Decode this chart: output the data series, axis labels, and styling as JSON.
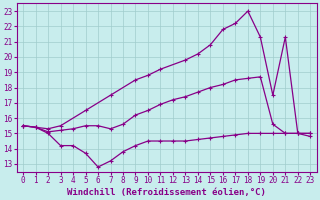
{
  "title": "",
  "xlabel": "Windchill (Refroidissement éolien,°C)",
  "xlabel_fontsize": 6.5,
  "xlim": [
    -0.5,
    23.5
  ],
  "ylim": [
    12.5,
    23.5
  ],
  "yticks": [
    13,
    14,
    15,
    16,
    17,
    18,
    19,
    20,
    21,
    22,
    23
  ],
  "xticks": [
    0,
    1,
    2,
    3,
    4,
    5,
    6,
    7,
    8,
    9,
    10,
    11,
    12,
    13,
    14,
    15,
    16,
    17,
    18,
    19,
    20,
    21,
    22,
    23
  ],
  "bg_color": "#c8eded",
  "grid_color": "#a0cccc",
  "line_color": "#880088",
  "line1_x": [
    0,
    1,
    2,
    3,
    4,
    5,
    6,
    7,
    8,
    9,
    10,
    11,
    12,
    13,
    14,
    15,
    16,
    17,
    18,
    19,
    20,
    21,
    22,
    23
  ],
  "line1_y": [
    15.5,
    15.4,
    15.1,
    15.2,
    15.3,
    15.5,
    15.5,
    15.3,
    15.6,
    16.2,
    16.5,
    16.9,
    17.2,
    17.4,
    17.7,
    18.0,
    18.2,
    18.5,
    18.6,
    18.7,
    15.6,
    15.0,
    15.0,
    15.0
  ],
  "line2_x": [
    0,
    1,
    2,
    3,
    4,
    5,
    6,
    7,
    8,
    9,
    10,
    11,
    12,
    13,
    14,
    15,
    16,
    17,
    18,
    19,
    20,
    21,
    22,
    23
  ],
  "line2_y": [
    15.5,
    15.4,
    15.0,
    14.2,
    14.2,
    13.7,
    12.8,
    13.2,
    13.8,
    14.2,
    14.5,
    14.5,
    14.5,
    14.5,
    14.6,
    14.7,
    14.8,
    14.9,
    15.0,
    15.0,
    15.0,
    15.0,
    15.0,
    15.0
  ],
  "line3_x": [
    0,
    1,
    2,
    3,
    5,
    7,
    9,
    10,
    11,
    13,
    14,
    15,
    16,
    17,
    18,
    19,
    20,
    21,
    22,
    23
  ],
  "line3_y": [
    15.5,
    15.4,
    15.3,
    15.5,
    16.5,
    17.5,
    18.5,
    18.8,
    19.2,
    19.8,
    20.2,
    20.8,
    21.8,
    22.2,
    23.0,
    21.3,
    17.5,
    21.3,
    15.0,
    14.8
  ]
}
